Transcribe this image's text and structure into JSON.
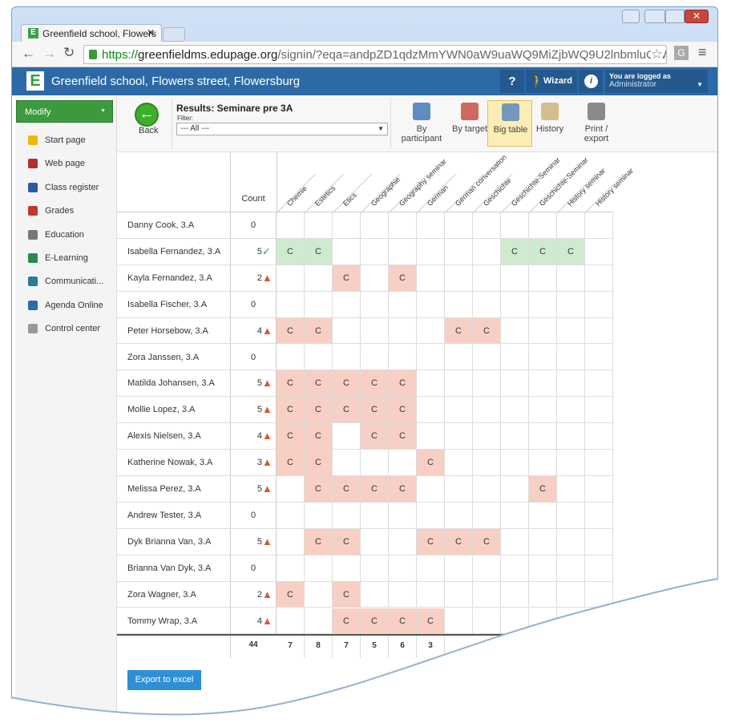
{
  "browser": {
    "tab_title": "Greenfield school, Flowers",
    "url_scheme": "https://",
    "url_host": "greenfieldms.edupage.org",
    "url_path": "/signin/?eqa=andpZD1qdzMmYWN0aW9uaWQ9MiZjbWQ9U2lnbmluQWN0a"
  },
  "header": {
    "logo": "E",
    "school": "Greenfield school, Flowers street, Flowersburg",
    "help": "?",
    "wizard": "Wizard",
    "info": "i",
    "logged_as": "You are logged as",
    "user": "Administrator"
  },
  "sidebar": {
    "button": "Modify",
    "items": [
      "Start page",
      "Web page",
      "Class register",
      "Grades",
      "Education",
      "E-Learning",
      "Communicati...",
      "Agenda Online",
      "Control center"
    ]
  },
  "toolbar": {
    "back": "Back",
    "title": "Results: Seminare pre 3A",
    "filter_label": "Filter:",
    "filter_value": "--- All ---",
    "views": [
      "By participant",
      "By target",
      "Big table",
      "History",
      "Print / export"
    ],
    "active_view": 2
  },
  "table": {
    "count_header": "Count",
    "columns": [
      "Chemie",
      "Estetics",
      "Etics",
      "Geographie",
      "Geography seminar",
      "German",
      "German conversation",
      "Geschichte",
      "Geschichte-Seminar",
      "Geschichte-Seminar",
      "History seminar",
      "History seminar"
    ],
    "rows": [
      {
        "name": "Danny Cook, 3.A",
        "count": 0,
        "status": null,
        "cells": [
          null,
          null,
          null,
          null,
          null,
          null,
          null,
          null,
          null,
          null,
          null,
          null
        ]
      },
      {
        "name": "Isabella Fernandez, 3.A",
        "count": 5,
        "status": "ok",
        "cells": [
          "C",
          "C",
          null,
          null,
          null,
          null,
          null,
          null,
          "C",
          "C",
          "C",
          null
        ]
      },
      {
        "name": "Kayla Fernandez, 3.A",
        "count": 2,
        "status": "warn",
        "cells": [
          null,
          null,
          "C",
          null,
          "C",
          null,
          null,
          null,
          null,
          null,
          null,
          null
        ]
      },
      {
        "name": "Isabella Fischer, 3.A",
        "count": 0,
        "status": null,
        "cells": [
          null,
          null,
          null,
          null,
          null,
          null,
          null,
          null,
          null,
          null,
          null,
          null
        ]
      },
      {
        "name": "Peter Horsebow, 3.A",
        "count": 4,
        "status": "warn",
        "cells": [
          "C",
          "C",
          null,
          null,
          null,
          null,
          "C",
          "C",
          null,
          null,
          null,
          null
        ]
      },
      {
        "name": "Zora Janssen, 3.A",
        "count": 0,
        "status": null,
        "cells": [
          null,
          null,
          null,
          null,
          null,
          null,
          null,
          null,
          null,
          null,
          null,
          null
        ]
      },
      {
        "name": "Matilda Johansen, 3.A",
        "count": 5,
        "status": "warn",
        "cells": [
          "C",
          "C",
          "C",
          "C",
          "C",
          null,
          null,
          null,
          null,
          null,
          null,
          null
        ]
      },
      {
        "name": "Mollie Lopez, 3.A",
        "count": 5,
        "status": "warn",
        "cells": [
          "C",
          "C",
          "C",
          "C",
          "C",
          null,
          null,
          null,
          null,
          null,
          null,
          null
        ]
      },
      {
        "name": "Alexis Nielsen, 3.A",
        "count": 4,
        "status": "warn",
        "cells": [
          "C",
          "C",
          null,
          "C",
          "C",
          null,
          null,
          null,
          null,
          null,
          null,
          null
        ]
      },
      {
        "name": "Katherine Nowak, 3.A",
        "count": 3,
        "status": "warn",
        "cells": [
          "C",
          "C",
          null,
          null,
          null,
          "C",
          null,
          null,
          null,
          null,
          null,
          null
        ]
      },
      {
        "name": "Melissa Perez, 3.A",
        "count": 5,
        "status": "warn",
        "cells": [
          null,
          "C",
          "C",
          "C",
          "C",
          null,
          null,
          null,
          null,
          "C",
          null,
          null
        ]
      },
      {
        "name": "Andrew Tester, 3.A",
        "count": 0,
        "status": null,
        "cells": [
          null,
          null,
          null,
          null,
          null,
          null,
          null,
          null,
          null,
          null,
          null,
          null
        ]
      },
      {
        "name": "Dyk Brianna Van, 3.A",
        "count": 5,
        "status": "warn",
        "cells": [
          null,
          "C",
          "C",
          null,
          null,
          "C",
          "C",
          "C",
          null,
          null,
          null,
          null
        ]
      },
      {
        "name": "Brianna Van Dyk, 3.A",
        "count": 0,
        "status": null,
        "cells": [
          null,
          null,
          null,
          null,
          null,
          null,
          null,
          null,
          null,
          null,
          null,
          null
        ]
      },
      {
        "name": "Zora Wagner, 3.A",
        "count": 2,
        "status": "warn",
        "cells": [
          "C",
          null,
          "C",
          null,
          null,
          null,
          null,
          null,
          null,
          null,
          null,
          null
        ]
      },
      {
        "name": "Tommy Wrap, 3.A",
        "count": 4,
        "status": "warn",
        "cells": [
          null,
          null,
          "C",
          "C",
          "C",
          "C",
          null,
          null,
          null,
          null,
          null,
          null
        ]
      }
    ],
    "totals": {
      "count": 44,
      "columns": [
        7,
        8,
        7,
        5,
        6,
        3
      ]
    }
  },
  "export_button": "Export to excel"
}
